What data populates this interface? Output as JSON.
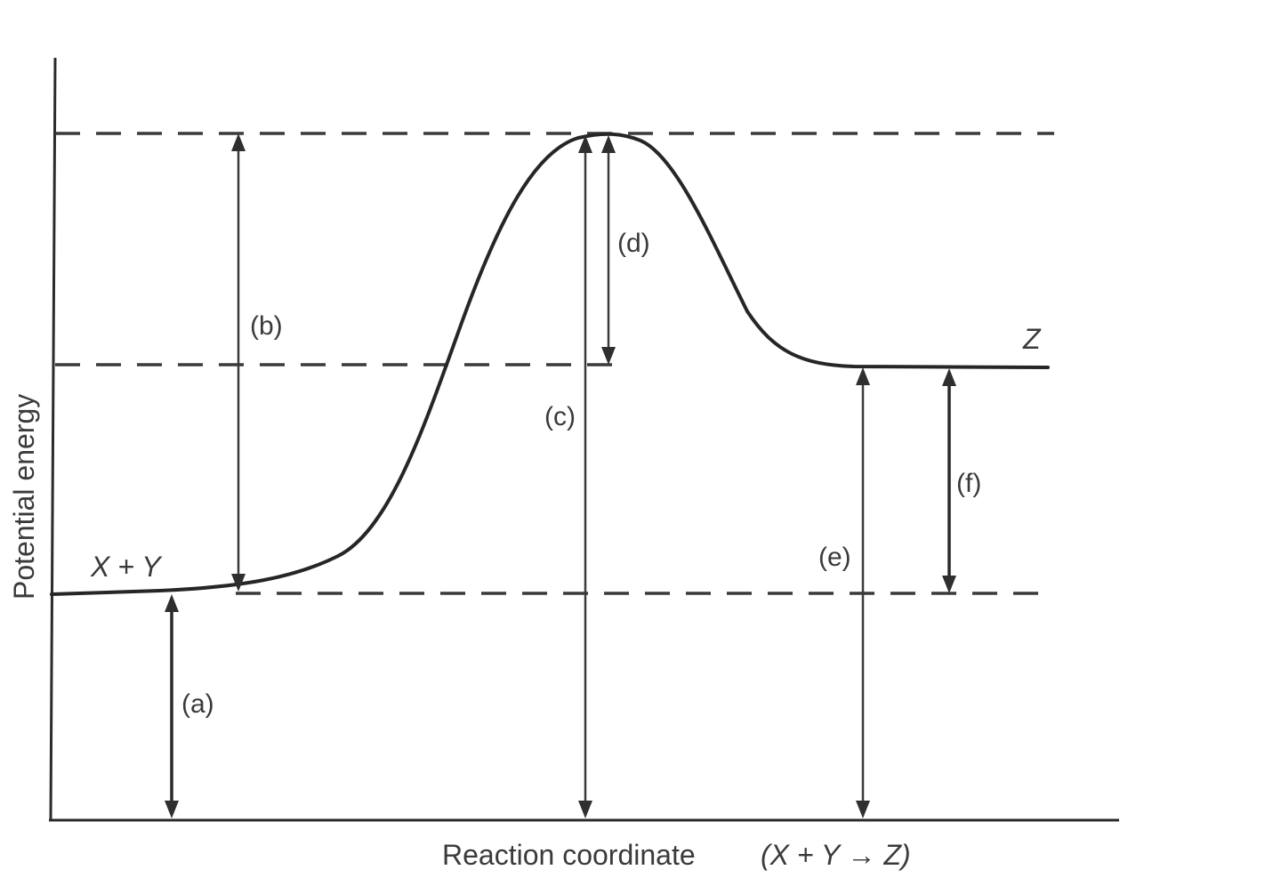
{
  "axes": {
    "y_label": "Potential energy",
    "x_label": "Reaction coordinate",
    "x_label_eq": "(X + Y → Z)"
  },
  "states": {
    "reactants": "X + Y",
    "product": "Z"
  },
  "arrows": {
    "a": "(a)",
    "b": "(b)",
    "c": "(c)",
    "d": "(d)",
    "e": "(e)",
    "f": "(f)"
  }
}
